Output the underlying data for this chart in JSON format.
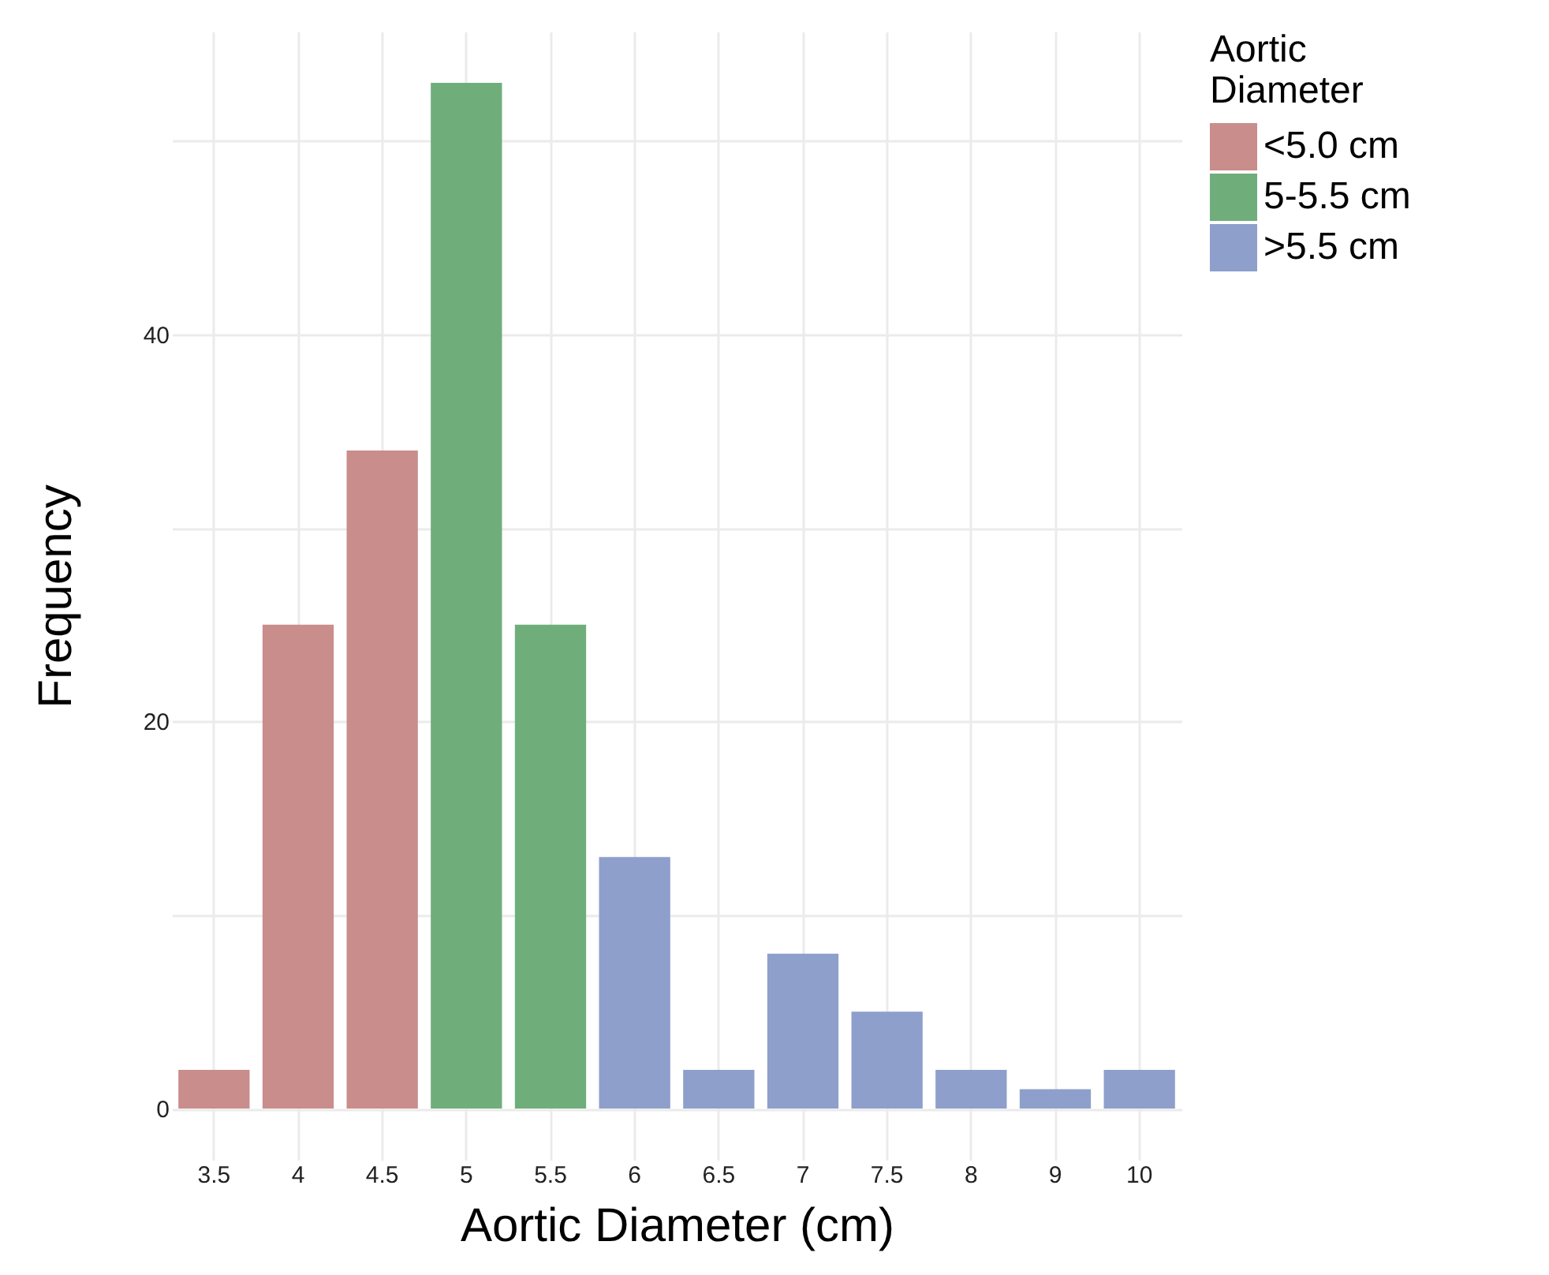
{
  "chart_data": {
    "type": "bar",
    "xlabel": "Aortic Diameter (cm)",
    "ylabel": "Frequency",
    "legend_title": "Aortic Diameter",
    "categories": [
      "3.5",
      "4",
      "4.5",
      "5",
      "5.5",
      "6",
      "6.5",
      "7",
      "7.5",
      "8",
      "9",
      "10"
    ],
    "series": [
      {
        "name": "<5.0 cm",
        "color": "#c98d8b",
        "values": [
          2,
          25,
          34,
          null,
          null,
          null,
          null,
          null,
          null,
          null,
          null,
          null
        ]
      },
      {
        "name": "5-5.5 cm",
        "color": "#6fae7b",
        "values": [
          null,
          null,
          null,
          53,
          25,
          null,
          null,
          null,
          null,
          null,
          null,
          null
        ]
      },
      {
        "name": ">5.5 cm",
        "color": "#8e9fcc",
        "values": [
          null,
          null,
          null,
          null,
          null,
          13,
          2,
          8,
          5,
          2,
          1,
          2
        ]
      }
    ],
    "ylim": [
      -2.65,
      55.65
    ],
    "yticks": [
      0,
      {
        "value": 10,
        "label": null
      },
      20,
      {
        "value": 30,
        "label": null
      },
      40,
      {
        "value": 50,
        "label": null
      }
    ],
    "grid": true,
    "legend": "right"
  }
}
